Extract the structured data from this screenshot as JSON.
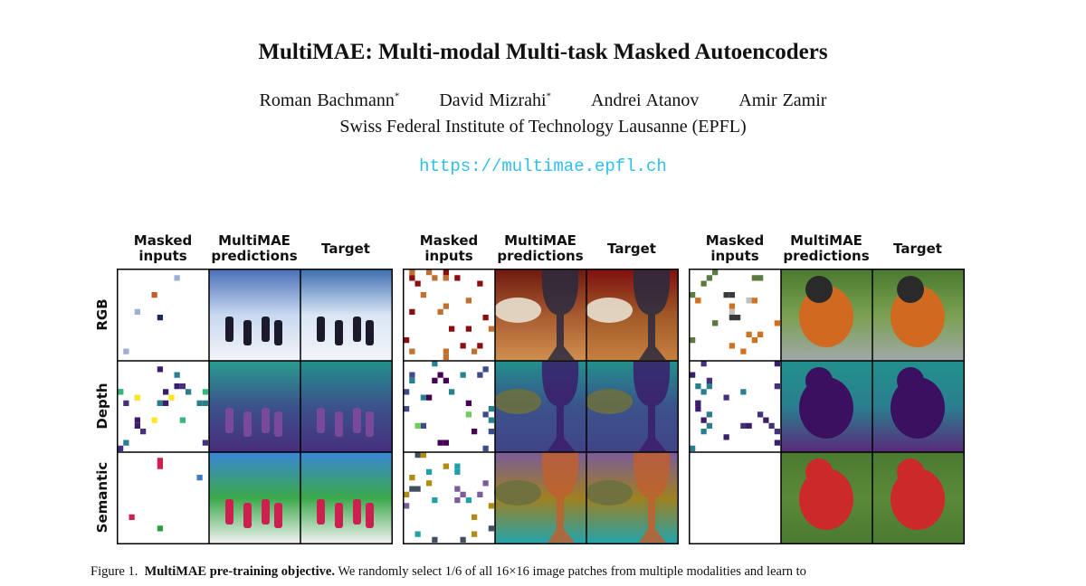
{
  "title": "MultiMAE: Multi-modal Multi-task Masked Autoencoders",
  "authors": [
    {
      "name": "Roman Bachmann",
      "mark": "*"
    },
    {
      "name": "David Mizrahi",
      "mark": "*"
    },
    {
      "name": "Andrei Atanov"
    },
    {
      "name": "Amir Zamir"
    }
  ],
  "affiliation": "Swiss Federal Institute of Technology Lausanne (EPFL)",
  "url": "https://multimae.epfl.ch",
  "figure": {
    "groups": [
      {
        "columns": [
          [
            "Masked",
            "inputs"
          ],
          [
            "MultiMAE",
            "predictions"
          ],
          [
            "Target"
          ]
        ]
      },
      {
        "columns": [
          [
            "Masked",
            "inputs"
          ],
          [
            "MultiMAE",
            "predictions"
          ],
          [
            "Target"
          ]
        ]
      },
      {
        "columns": [
          [
            "Masked",
            "inputs"
          ],
          [
            "MultiMAE",
            "predictions"
          ],
          [
            "Target"
          ]
        ]
      }
    ],
    "rows": [
      "RGB",
      "Depth",
      "Semantic"
    ]
  },
  "caption": {
    "label": "Figure 1.",
    "bold": "MultiMAE pre-training objective.",
    "text": "We randomly select 1/6 of all 16×16 image patches from multiple modalities and learn to"
  }
}
